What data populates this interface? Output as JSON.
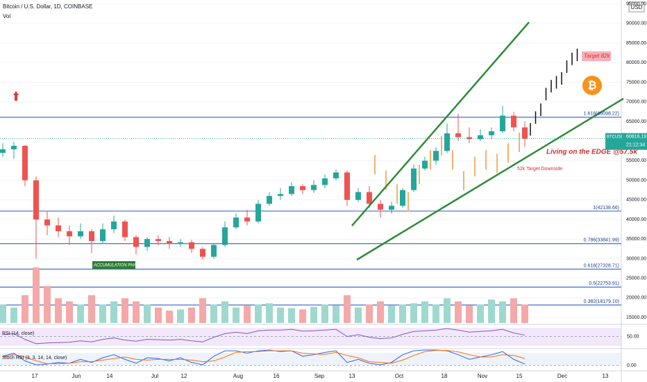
{
  "chart_data": {
    "type": "candlestick",
    "title": "Bitcoin / U.S. Dollar, 1D, COINBASE",
    "volume_label": "Vol",
    "currency": "USD",
    "ylim": [
      13600,
      96000
    ],
    "yticks": [
      {
        "value": 15000,
        "label": "15000.00"
      },
      {
        "value": 20000,
        "label": "20000.00"
      },
      {
        "value": 25000,
        "label": "25000.00"
      },
      {
        "value": 30000,
        "label": "30000.00"
      },
      {
        "value": 35000,
        "label": "35000.00"
      },
      {
        "value": 40000,
        "label": "40000.00"
      },
      {
        "value": 45000,
        "label": "45000.00"
      },
      {
        "value": 50000,
        "label": "50000.00"
      },
      {
        "value": 55000,
        "label": "55000.00"
      },
      {
        "value": 65000,
        "label": "65000.00"
      },
      {
        "value": 70000,
        "label": "70000.00"
      },
      {
        "value": 75000,
        "label": "75000.00"
      },
      {
        "value": 80000,
        "label": "80000.00"
      },
      {
        "value": 85000,
        "label": "85000.00"
      },
      {
        "value": 90000,
        "label": "90000.00"
      },
      {
        "value": 95000,
        "label": "95000.00"
      }
    ],
    "x_labels": [
      "17",
      "Jun",
      "14",
      "Jul",
      "12",
      "Aug",
      "16",
      "Sep",
      "13",
      "Oct",
      "18",
      "Nov",
      "15",
      "Dec",
      "13"
    ],
    "candles": [
      [
        57000,
        59500,
        56000,
        57900
      ],
      [
        57900,
        59800,
        55500,
        58800
      ],
      [
        58800,
        59000,
        48500,
        50000
      ],
      [
        50000,
        51000,
        30000,
        40000
      ],
      [
        40000,
        42000,
        36000,
        38500
      ],
      [
        38500,
        40500,
        35500,
        37000
      ],
      [
        37000,
        38500,
        33500,
        35700
      ],
      [
        35700,
        39000,
        35000,
        37000
      ],
      [
        37000,
        37500,
        31500,
        34500
      ],
      [
        34500,
        39000,
        34000,
        37500
      ],
      [
        37500,
        41000,
        36500,
        39500
      ],
      [
        39500,
        40000,
        34500,
        35500
      ],
      [
        35500,
        36000,
        31000,
        33000
      ],
      [
        33000,
        35500,
        32000,
        35000
      ],
      [
        35000,
        36000,
        33500,
        34500
      ],
      [
        34500,
        35500,
        32500,
        33800
      ],
      [
        33800,
        35000,
        33000,
        34200
      ],
      [
        34200,
        34800,
        31500,
        32500
      ],
      [
        32500,
        33000,
        29800,
        30500
      ],
      [
        30500,
        34000,
        30000,
        33500
      ],
      [
        33500,
        39500,
        33000,
        38000
      ],
      [
        38000,
        41500,
        37500,
        40500
      ],
      [
        40500,
        42500,
        38500,
        39500
      ],
      [
        39500,
        45000,
        39000,
        44000
      ],
      [
        44000,
        47000,
        43500,
        46000
      ],
      [
        46000,
        48000,
        45000,
        46500
      ],
      [
        46500,
        49500,
        46000,
        48500
      ],
      [
        48500,
        49000,
        46500,
        47500
      ],
      [
        47500,
        50000,
        46800,
        48800
      ],
      [
        48800,
        51500,
        48000,
        50500
      ],
      [
        50500,
        52800,
        50000,
        52000
      ],
      [
        52000,
        52500,
        43500,
        45000
      ],
      [
        45000,
        48000,
        44500,
        47000
      ],
      [
        47000,
        48500,
        43000,
        44000
      ],
      [
        44000,
        45000,
        40500,
        42500
      ],
      [
        42500,
        44500,
        41500,
        43500
      ],
      [
        43500,
        48000,
        43000,
        47500
      ],
      [
        47500,
        54000,
        47000,
        53000
      ],
      [
        53000,
        56000,
        52500,
        55000
      ],
      [
        55000,
        58500,
        54000,
        57500
      ],
      [
        57500,
        64500,
        57000,
        62000
      ],
      [
        62000,
        67000,
        60000,
        61000
      ],
      [
        61000,
        63500,
        59500,
        60500
      ],
      [
        60500,
        63000,
        60000,
        61500
      ],
      [
        61500,
        63500,
        60500,
        62500
      ],
      [
        62500,
        69000,
        62000,
        66500
      ],
      [
        66500,
        67500,
        62500,
        63500
      ],
      [
        63500,
        65000,
        58500,
        60600
      ]
    ],
    "volume": [
      30,
      25,
      45,
      90,
      60,
      40,
      35,
      30,
      45,
      30,
      35,
      40,
      35,
      30,
      25,
      20,
      22,
      25,
      40,
      30,
      35,
      25,
      28,
      30,
      32,
      25,
      24,
      22,
      26,
      30,
      28,
      45,
      25,
      30,
      35,
      28,
      30,
      32,
      35,
      30,
      40,
      35,
      28,
      30,
      38,
      35,
      40,
      30
    ],
    "projection": [
      63000,
      66000,
      68000,
      72000,
      74000,
      75000,
      76000,
      79000,
      81000,
      82000
    ],
    "fractal": [
      54000,
      50000,
      46500,
      44500,
      51500,
      55200,
      58800,
      55200,
      49900,
      53500,
      55200,
      54300,
      57000,
      59700
    ],
    "levels": [
      {
        "label": "1.618(66098.22)",
        "value": 66098.22
      },
      {
        "label": "1(42138.66)",
        "value": 42138.66
      },
      {
        "label": "0.786(33841.99)",
        "value": 33841.99
      },
      {
        "label": "0.618(27328.71)",
        "value": 27328.71
      },
      {
        "label": "0.5(22753.91)",
        "value": 22753.91
      },
      {
        "label": "0.382(18179.10)",
        "value": 18179.1
      }
    ],
    "last": {
      "symbol": "BTCUSD",
      "value": 60616.19,
      "time": "21:12:34"
    },
    "annotations": {
      "target": "Target 82k",
      "edge": "Living on the EDGE @57.5k",
      "downside": "52k Target Downside",
      "accumulation": "ACCUMULATION PHASE"
    },
    "rsi": {
      "title": "RSI (14, close)",
      "ylim": [
        20,
        80
      ],
      "yticks": [
        {
          "value": 50,
          "label": "50.00"
        }
      ],
      "values": [
        55,
        58,
        42,
        30,
        32,
        33,
        34,
        38,
        35,
        42,
        46,
        40,
        37,
        42,
        41,
        40,
        42,
        38,
        35,
        48,
        58,
        62,
        58,
        66,
        68,
        68,
        70,
        65,
        66,
        68,
        70,
        50,
        55,
        48,
        44,
        46,
        56,
        64,
        66,
        68,
        72,
        68,
        62,
        64,
        66,
        70,
        60,
        54
      ]
    },
    "stoch": {
      "title": "Stoch RSI (3, 3, 14, 14, close)",
      "ylim": [
        -30,
        100
      ],
      "yticks": [
        {
          "value": 0,
          "label": "0.00"
        }
      ],
      "k": [
        60,
        80,
        30,
        5,
        10,
        20,
        15,
        40,
        20,
        50,
        70,
        40,
        15,
        50,
        45,
        30,
        50,
        20,
        5,
        60,
        95,
        95,
        80,
        95,
        100,
        90,
        95,
        60,
        70,
        85,
        95,
        20,
        40,
        15,
        5,
        20,
        70,
        95,
        100,
        100,
        95,
        70,
        40,
        55,
        70,
        90,
        40,
        10
      ],
      "d": [
        55,
        70,
        55,
        30,
        12,
        12,
        15,
        25,
        25,
        35,
        45,
        55,
        40,
        35,
        40,
        40,
        40,
        35,
        25,
        30,
        55,
        85,
        90,
        90,
        95,
        95,
        95,
        80,
        75,
        72,
        85,
        65,
        50,
        25,
        20,
        15,
        35,
        65,
        90,
        98,
        98,
        88,
        70,
        55,
        55,
        70,
        65,
        45
      ]
    }
  }
}
